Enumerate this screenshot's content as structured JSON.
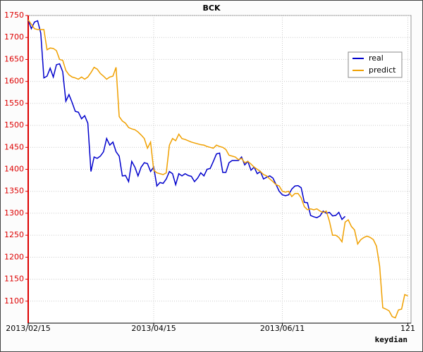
{
  "chart_data": {
    "type": "line",
    "title": "BCK",
    "xlabel": "keydian",
    "x": [
      0,
      1,
      2,
      3,
      4,
      5,
      6,
      7,
      8,
      9,
      10,
      11,
      12,
      13,
      14,
      15,
      16,
      17,
      18,
      19,
      20,
      21,
      22,
      23,
      24,
      25,
      26,
      27,
      28,
      29,
      30,
      31,
      32,
      33,
      34,
      35,
      36,
      37,
      38,
      39,
      40,
      41,
      42,
      43,
      44,
      45,
      46,
      47,
      48,
      49,
      50,
      51,
      52,
      53,
      54,
      55,
      56,
      57,
      58,
      59,
      60,
      61,
      62,
      63,
      64,
      65,
      66,
      67,
      68,
      69,
      70,
      71,
      72,
      73,
      74,
      75,
      76,
      77,
      78,
      79,
      80,
      81,
      82,
      83,
      84,
      85,
      86,
      87,
      88,
      89,
      90,
      91,
      92,
      93,
      94,
      95,
      96,
      97,
      98,
      99,
      100,
      101,
      102,
      103,
      104,
      105,
      106,
      107,
      108,
      109,
      110,
      111,
      112,
      113,
      114,
      115,
      116,
      117,
      118,
      119,
      120,
      121
    ],
    "series": [
      {
        "name": "real",
        "color": "#0000cc",
        "values": [
          1740,
          1720,
          1735,
          1738,
          1710,
          1608,
          1612,
          1630,
          1610,
          1638,
          1640,
          1622,
          1555,
          1570,
          1552,
          1532,
          1530,
          1515,
          1522,
          1505,
          1395,
          1428,
          1425,
          1430,
          1440,
          1470,
          1455,
          1462,
          1440,
          1430,
          1385,
          1386,
          1372,
          1418,
          1405,
          1385,
          1405,
          1415,
          1413,
          1395,
          1405,
          1362,
          1370,
          1368,
          1378,
          1395,
          1390,
          1365,
          1390,
          1385,
          1390,
          1386,
          1384,
          1372,
          1380,
          1392,
          1385,
          1400,
          1402,
          1418,
          1435,
          1437,
          1393,
          1393,
          1415,
          1420,
          1420,
          1420,
          1428,
          1410,
          1418,
          1398,
          1405,
          1390,
          1395,
          1378,
          1382,
          1385,
          1380,
          1365,
          1350,
          1342,
          1340,
          1342,
          1355,
          1362,
          1363,
          1358,
          1325,
          1324,
          1295,
          1292,
          1290,
          1294,
          1305,
          1300,
          1302,
          1294,
          1295,
          1302,
          1286,
          1293,
          null,
          null,
          null,
          null,
          null,
          null,
          null,
          null,
          null,
          null,
          null,
          null,
          null,
          null,
          null,
          null,
          null,
          null,
          null,
          null
        ]
      },
      {
        "name": "predict",
        "color": "#f0a000",
        "values": [
          1740,
          1730,
          1720,
          1718,
          1718,
          1718,
          1672,
          1676,
          1675,
          1670,
          1650,
          1648,
          1625,
          1615,
          1610,
          1608,
          1605,
          1610,
          1605,
          1610,
          1620,
          1632,
          1628,
          1618,
          1612,
          1605,
          1610,
          1612,
          1632,
          1520,
          1510,
          1505,
          1495,
          1492,
          1490,
          1485,
          1478,
          1470,
          1448,
          1462,
          1398,
          1392,
          1390,
          1388,
          1392,
          1455,
          1470,
          1465,
          1480,
          1470,
          1468,
          1465,
          1462,
          1460,
          1458,
          1456,
          1455,
          1452,
          1450,
          1448,
          1455,
          1452,
          1450,
          1445,
          1432,
          1430,
          1428,
          1422,
          1425,
          1415,
          1418,
          1412,
          1405,
          1400,
          1395,
          1388,
          1385,
          1378,
          1372,
          1365,
          1362,
          1350,
          1348,
          1350,
          1338,
          1345,
          1345,
          1335,
          1315,
          1308,
          1310,
          1308,
          1310,
          1305,
          1302,
          1305,
          1282,
          1250,
          1250,
          1245,
          1235,
          1280,
          1285,
          1270,
          1262,
          1230,
          1240,
          1245,
          1248,
          1245,
          1240,
          1225,
          1180,
          1085,
          1082,
          1078,
          1065,
          1062,
          1080,
          1082,
          1115,
          1112
        ]
      }
    ],
    "xlim": [
      0,
      122
    ],
    "xticks": [
      {
        "value": 0,
        "label": "2013/02/15"
      },
      {
        "value": 40,
        "label": "2013/04/15"
      },
      {
        "value": 81,
        "label": "2013/06/11"
      },
      121
    ],
    "ylim": [
      1050,
      1750
    ],
    "yticks": [
      1100,
      1150,
      1200,
      1250,
      1300,
      1350,
      1400,
      1450,
      1500,
      1550,
      1600,
      1650,
      1700,
      1750
    ],
    "grid": true,
    "legend": "upper right",
    "axis_color": "#dd0000"
  }
}
